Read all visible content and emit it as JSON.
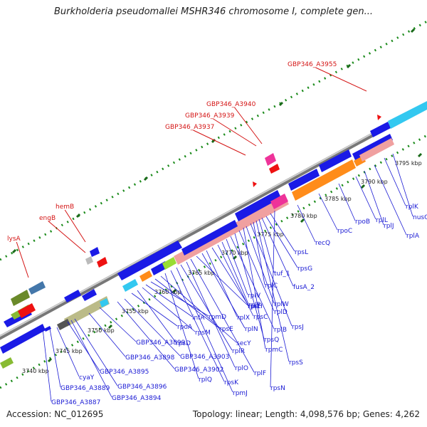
{
  "title": "Burkholderia pseudomallei MSHR346 chromosome I, complete gen...",
  "footer": {
    "accession": "Accession: NC_012695",
    "topology": "Topology: linear; Length: 4,098,576 bp; Genes: 4,262"
  },
  "colors": {
    "backbone": "#888888",
    "dots": "#1a8a1a",
    "blue_gene": "#1a1ae6",
    "cyan_gene": "#33c8f0",
    "pink_gene": "#f0a0a0",
    "magenta_gene": "#ee3399",
    "orange_gene": "#ff8c1a",
    "red_label": "#d41414",
    "blue_label": "#1a1ad4"
  },
  "ticks": [
    "3740 kbp",
    "3745 kbp",
    "3750 kbp",
    "3755 kbp",
    "3760 kbp",
    "3765 kbp",
    "3770 kbp",
    "3775 kbp",
    "3780 kbp",
    "3785 kbp",
    "3790 kbp",
    "3795 kbp"
  ],
  "red_labels": [
    "lysA",
    "engB",
    "hemB",
    "GBP346_A3937",
    "GBP346_A3939",
    "GBP346_A3940",
    "GBP346_A3955"
  ],
  "blue_labels": [
    "GBP346_A3887",
    "GBP346_A3889",
    "cyaY",
    "GBP346_A3895",
    "GBP346_A3894",
    "GBP346_A3896",
    "GBP346_A3898",
    "GBP346_A3899",
    "GBP346_A3902",
    "GBP346_A3903",
    "rpoA",
    "rpsD",
    "rpsM",
    "infA",
    "rpmD",
    "rpsE",
    "secY",
    "rplQ",
    "rpsK",
    "rpmJ",
    "rplR",
    "rplO",
    "rplF",
    "rpsH",
    "rplN",
    "rplX",
    "rplE",
    "rpsC",
    "rplP",
    "rplV",
    "rplB",
    "rpsQ",
    "rplD",
    "rpmC",
    "rplW",
    "rpsJ",
    "rplC",
    "rpsS",
    "tuf_1",
    "fusA_2",
    "rpsG",
    "rpsL",
    "rpsN",
    "recQ",
    "rpoC",
    "rpoB",
    "rplL",
    "rplJ",
    "rplA",
    "rplK",
    "nusG"
  ]
}
